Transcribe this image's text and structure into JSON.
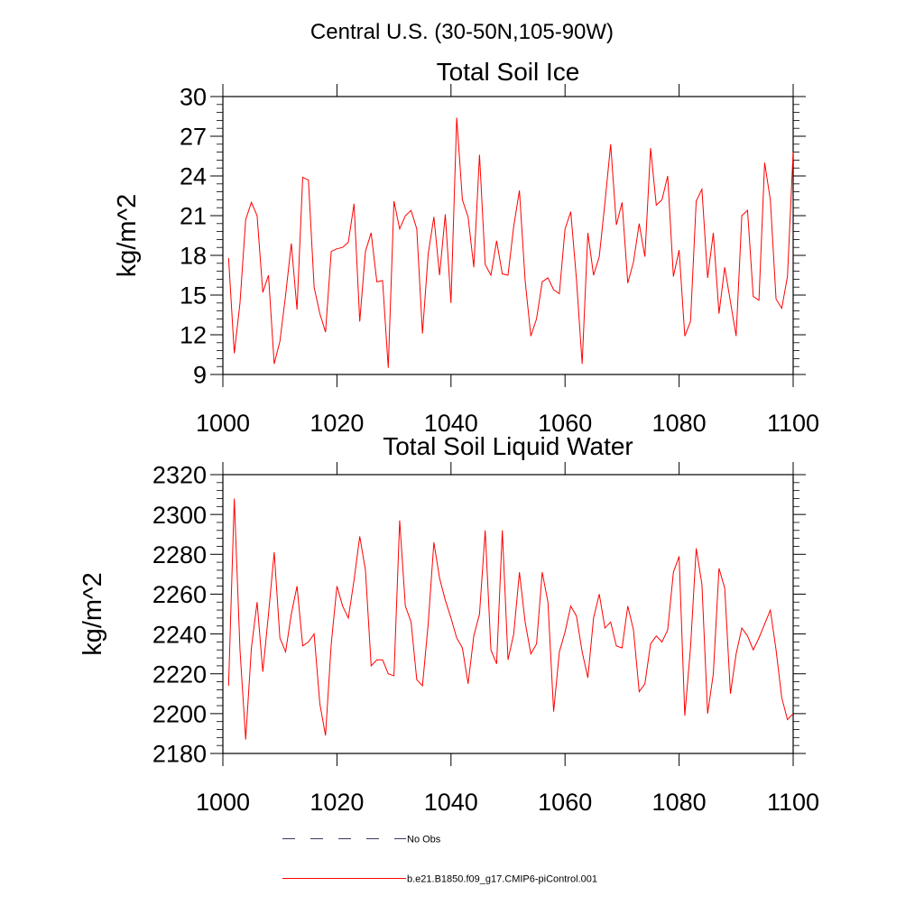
{
  "page_title": "Central U.S. (30-50N,105-90W)",
  "legend": {
    "items": [
      {
        "label": "No Obs",
        "style": "dashed",
        "color": "#3a3a5a"
      },
      {
        "label": "b.e21.B1850.f09_g17.CMIP6-piControl.001",
        "style": "solid",
        "color": "#ff0000"
      }
    ]
  },
  "chart_data": [
    {
      "type": "line",
      "title": "Total Soil Ice",
      "ylabel": "kg/m^2",
      "xlabel": "",
      "xlim": [
        1000,
        1100
      ],
      "ylim": [
        9,
        30
      ],
      "xticks": [
        1000,
        1020,
        1040,
        1060,
        1080,
        1100
      ],
      "yticks": [
        9,
        12,
        15,
        18,
        21,
        24,
        27,
        30
      ],
      "xticks_labels": [
        "1000",
        "1020",
        "1040",
        "1060",
        "1080",
        "1100"
      ],
      "yticks_labels": [
        "9",
        "12",
        "15",
        "18",
        "21",
        "24",
        "27",
        "30"
      ],
      "series": [
        {
          "name": "b.e21.B1850.f09_g17.CMIP6-piControl.001",
          "color": "#ff0000",
          "x_start": 1001,
          "x_step": 1,
          "values": [
            17.8,
            10.6,
            14.4,
            20.7,
            22.0,
            21.0,
            15.2,
            16.5,
            9.8,
            11.5,
            15.0,
            18.9,
            13.9,
            23.9,
            23.7,
            15.6,
            13.6,
            12.2,
            18.3,
            18.5,
            18.6,
            19.0,
            21.9,
            13.0,
            18.3,
            19.7,
            16.0,
            16.1,
            9.5,
            22.1,
            20.0,
            21.0,
            21.4,
            20.0,
            12.1,
            18.1,
            20.9,
            16.5,
            21.1,
            14.4,
            28.4,
            22.2,
            20.9,
            17.1,
            25.6,
            17.3,
            16.5,
            19.1,
            16.6,
            16.5,
            20.2,
            22.9,
            16.1,
            11.9,
            13.2,
            16.0,
            16.3,
            15.4,
            15.1,
            20.0,
            21.3,
            16.2,
            9.8,
            19.7,
            16.5,
            17.9,
            22.0,
            26.4,
            20.3,
            22.0,
            15.9,
            17.5,
            20.4,
            17.9,
            26.1,
            21.8,
            22.2,
            24.0,
            16.4,
            18.4,
            11.9,
            13.0,
            22.1,
            23.0,
            16.3,
            19.7,
            13.6,
            17.1,
            14.5,
            11.9,
            21.0,
            21.4,
            14.9,
            14.6,
            25.0,
            22.2,
            14.7,
            14.0,
            16.4,
            25.8
          ]
        }
      ]
    },
    {
      "type": "line",
      "title": "Total Soil Liquid Water",
      "ylabel": "kg/m^2",
      "xlabel": "",
      "xlim": [
        1000,
        1100
      ],
      "ylim": [
        2180,
        2320
      ],
      "xticks": [
        1000,
        1020,
        1040,
        1060,
        1080,
        1100
      ],
      "yticks": [
        2180,
        2200,
        2220,
        2240,
        2260,
        2280,
        2300,
        2320
      ],
      "xticks_labels": [
        "1000",
        "1020",
        "1040",
        "1060",
        "1080",
        "1100"
      ],
      "yticks_labels": [
        "2180",
        "2200",
        "2220",
        "2240",
        "2260",
        "2280",
        "2300",
        "2320"
      ],
      "series": [
        {
          "name": "b.e21.B1850.f09_g17.CMIP6-piControl.001",
          "color": "#ff0000",
          "x_start": 1001,
          "x_step": 1,
          "values": [
            2214,
            2308,
            2232,
            2187,
            2233,
            2256,
            2221,
            2250,
            2281,
            2238,
            2231,
            2250,
            2264,
            2234,
            2236,
            2240,
            2205,
            2189,
            2235,
            2264,
            2254,
            2248,
            2267,
            2289,
            2272,
            2224,
            2227,
            2227,
            2220,
            2219,
            2297,
            2254,
            2246,
            2217,
            2214,
            2245,
            2286,
            2268,
            2257,
            2248,
            2238,
            2233,
            2215,
            2239,
            2250,
            2292,
            2232,
            2225,
            2292,
            2227,
            2240,
            2271,
            2246,
            2230,
            2235,
            2271,
            2256,
            2201,
            2231,
            2241,
            2254,
            2249,
            2231,
            2218,
            2248,
            2260,
            2243,
            2246,
            2234,
            2233,
            2254,
            2242,
            2211,
            2215,
            2235,
            2239,
            2236,
            2242,
            2271,
            2279,
            2199,
            2233,
            2283,
            2265,
            2200,
            2220,
            2273,
            2263,
            2210,
            2230,
            2243,
            2239,
            2232,
            2238,
            2245,
            2252,
            2232,
            2208,
            2197,
            2200
          ]
        }
      ]
    }
  ]
}
